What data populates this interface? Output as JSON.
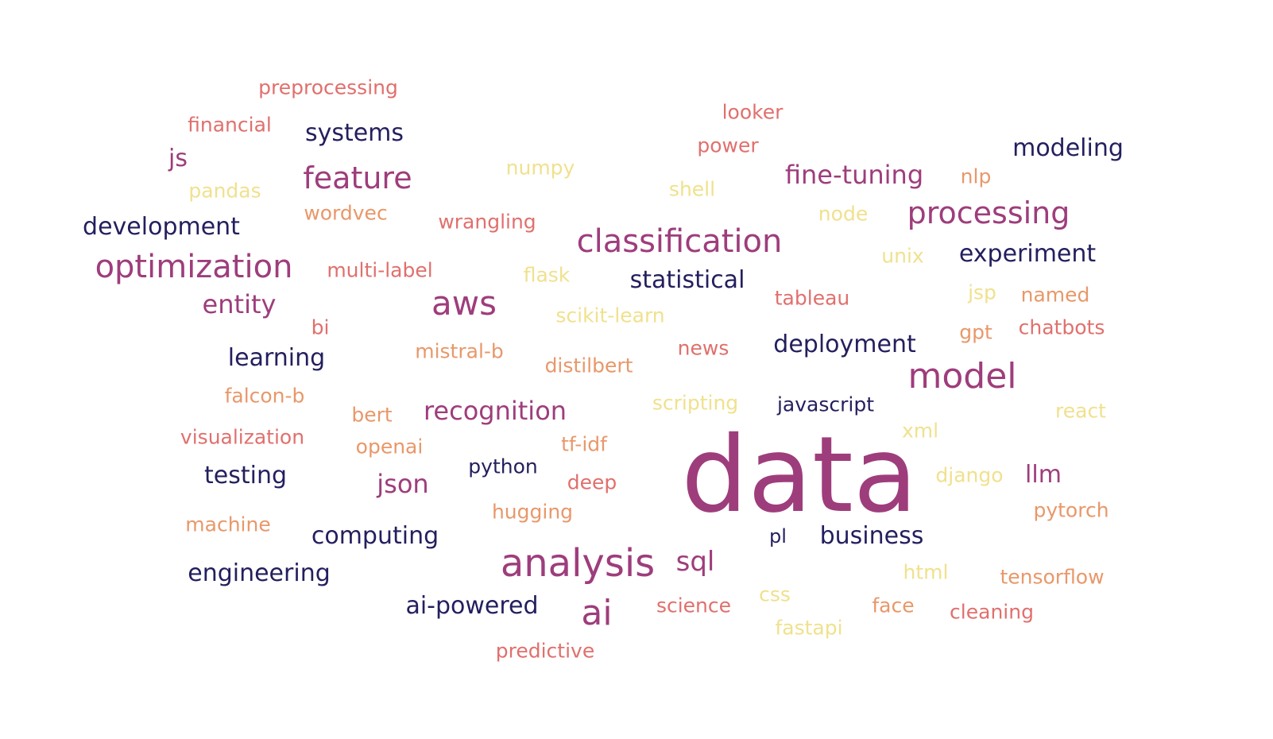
{
  "palette": {
    "c1": "#231f5e",
    "c2": "#8b2e80",
    "c3": "#9e3d7c",
    "c4": "#e0706d",
    "c5": "#e8986a",
    "c6": "#f0e18e"
  },
  "words": [
    {
      "text": "data",
      "color": "c3",
      "weight": 100
    },
    {
      "text": "analysis",
      "color": "c3",
      "weight": 34
    },
    {
      "text": "model",
      "color": "c3",
      "weight": 30
    },
    {
      "text": "ai",
      "color": "c3",
      "weight": 30
    },
    {
      "text": "classification",
      "color": "c3",
      "weight": 28
    },
    {
      "text": "optimization",
      "color": "c3",
      "weight": 28
    },
    {
      "text": "aws",
      "color": "c3",
      "weight": 28
    },
    {
      "text": "processing",
      "color": "c3",
      "weight": 26
    },
    {
      "text": "feature",
      "color": "c3",
      "weight": 26
    },
    {
      "text": "recognition",
      "color": "c3",
      "weight": 22
    },
    {
      "text": "fine-tuning",
      "color": "c3",
      "weight": 22
    },
    {
      "text": "entity",
      "color": "c3",
      "weight": 22
    },
    {
      "text": "json",
      "color": "c3",
      "weight": 22
    },
    {
      "text": "sql",
      "color": "c3",
      "weight": 22
    },
    {
      "text": "llm",
      "color": "c3",
      "weight": 20
    },
    {
      "text": "js",
      "color": "c3",
      "weight": 20
    },
    {
      "text": "systems",
      "color": "c1",
      "weight": 21
    },
    {
      "text": "modeling",
      "color": "c1",
      "weight": 21
    },
    {
      "text": "development",
      "color": "c1",
      "weight": 21
    },
    {
      "text": "experiment",
      "color": "c1",
      "weight": 21
    },
    {
      "text": "statistical",
      "color": "c1",
      "weight": 21
    },
    {
      "text": "learning",
      "color": "c1",
      "weight": 21
    },
    {
      "text": "deployment",
      "color": "c1",
      "weight": 21
    },
    {
      "text": "testing",
      "color": "c1",
      "weight": 21
    },
    {
      "text": "computing",
      "color": "c1",
      "weight": 21
    },
    {
      "text": "business",
      "color": "c1",
      "weight": 21
    },
    {
      "text": "engineering",
      "color": "c1",
      "weight": 21
    },
    {
      "text": "ai-powered",
      "color": "c1",
      "weight": 21
    },
    {
      "text": "javascript",
      "color": "c1",
      "weight": 18
    },
    {
      "text": "python",
      "color": "c1",
      "weight": 18
    },
    {
      "text": "pl",
      "color": "c1",
      "weight": 16
    },
    {
      "text": "preprocessing",
      "color": "c4",
      "weight": 16
    },
    {
      "text": "financial",
      "color": "c4",
      "weight": 16
    },
    {
      "text": "looker",
      "color": "c4",
      "weight": 16
    },
    {
      "text": "power",
      "color": "c4",
      "weight": 16
    },
    {
      "text": "wrangling",
      "color": "c4",
      "weight": 16
    },
    {
      "text": "multi-label",
      "color": "c4",
      "weight": 16
    },
    {
      "text": "tableau",
      "color": "c4",
      "weight": 16
    },
    {
      "text": "bi",
      "color": "c4",
      "weight": 16
    },
    {
      "text": "chatbots",
      "color": "c4",
      "weight": 16
    },
    {
      "text": "news",
      "color": "c4",
      "weight": 16
    },
    {
      "text": "visualization",
      "color": "c4",
      "weight": 16
    },
    {
      "text": "deep",
      "color": "c4",
      "weight": 16
    },
    {
      "text": "science",
      "color": "c4",
      "weight": 16
    },
    {
      "text": "cleaning",
      "color": "c4",
      "weight": 16
    },
    {
      "text": "predictive",
      "color": "c4",
      "weight": 16
    },
    {
      "text": "wordvec",
      "color": "c5",
      "weight": 16
    },
    {
      "text": "nlp",
      "color": "c5",
      "weight": 16
    },
    {
      "text": "named",
      "color": "c5",
      "weight": 16
    },
    {
      "text": "gpt",
      "color": "c5",
      "weight": 16
    },
    {
      "text": "mistral-b",
      "color": "c5",
      "weight": 16
    },
    {
      "text": "distilbert",
      "color": "c5",
      "weight": 16
    },
    {
      "text": "falcon-b",
      "color": "c5",
      "weight": 16
    },
    {
      "text": "bert",
      "color": "c5",
      "weight": 16
    },
    {
      "text": "openai",
      "color": "c5",
      "weight": 16
    },
    {
      "text": "tf-idf",
      "color": "c5",
      "weight": 16
    },
    {
      "text": "hugging",
      "color": "c5",
      "weight": 16
    },
    {
      "text": "machine",
      "color": "c5",
      "weight": 16
    },
    {
      "text": "pytorch",
      "color": "c5",
      "weight": 16
    },
    {
      "text": "tensorflow",
      "color": "c5",
      "weight": 16
    },
    {
      "text": "face",
      "color": "c5",
      "weight": 16
    },
    {
      "text": "numpy",
      "color": "c6",
      "weight": 16
    },
    {
      "text": "pandas",
      "color": "c6",
      "weight": 16
    },
    {
      "text": "shell",
      "color": "c6",
      "weight": 16
    },
    {
      "text": "node",
      "color": "c6",
      "weight": 16
    },
    {
      "text": "unix",
      "color": "c6",
      "weight": 16
    },
    {
      "text": "flask",
      "color": "c6",
      "weight": 16
    },
    {
      "text": "jsp",
      "color": "c6",
      "weight": 16
    },
    {
      "text": "scikit-learn",
      "color": "c6",
      "weight": 16
    },
    {
      "text": "scripting",
      "color": "c6",
      "weight": 16
    },
    {
      "text": "react",
      "color": "c6",
      "weight": 16
    },
    {
      "text": "xml",
      "color": "c6",
      "weight": 16
    },
    {
      "text": "django",
      "color": "c6",
      "weight": 16
    },
    {
      "text": "html",
      "color": "c6",
      "weight": 16
    },
    {
      "text": "css",
      "color": "c6",
      "weight": 16
    },
    {
      "text": "fastapi",
      "color": "c6",
      "weight": 16
    }
  ]
}
